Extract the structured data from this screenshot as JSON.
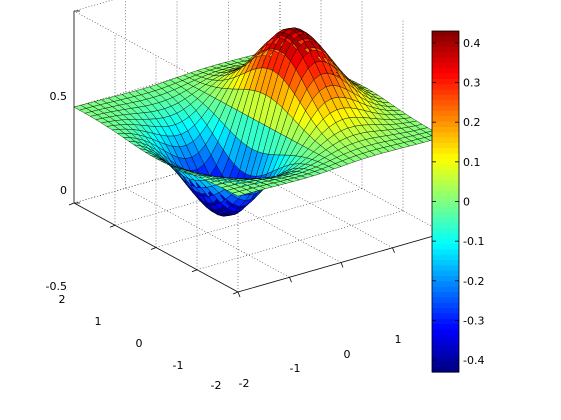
{
  "chart_data": {
    "type": "surface",
    "function": "z = x * exp(-x^2 - y^2)",
    "x_range": [
      -2,
      2
    ],
    "y_range": [
      -2,
      2
    ],
    "z_range": [
      -0.5,
      0.5
    ],
    "grid_points": 30,
    "x_ticks": [
      "-2",
      "-1",
      "0",
      "1",
      "2"
    ],
    "y_ticks": [
      "-2",
      "-1",
      "0",
      "1",
      "2"
    ],
    "z_ticks": [
      "-0.5",
      "0",
      "0.5"
    ],
    "colormap": "jet",
    "color_limits": [
      -0.43,
      0.43
    ],
    "colorbar_ticks": [
      "0.4",
      "0.3",
      "0.2",
      "0.1",
      "0",
      "-0.1",
      "-0.2",
      "-0.3",
      "-0.4"
    ],
    "colorbar_tick_values": [
      0.4,
      0.3,
      0.2,
      0.1,
      0,
      -0.1,
      -0.2,
      -0.3,
      -0.4
    ],
    "mesh_color": "#000000",
    "grid": true,
    "box": false,
    "legend": "colorbar-right"
  }
}
